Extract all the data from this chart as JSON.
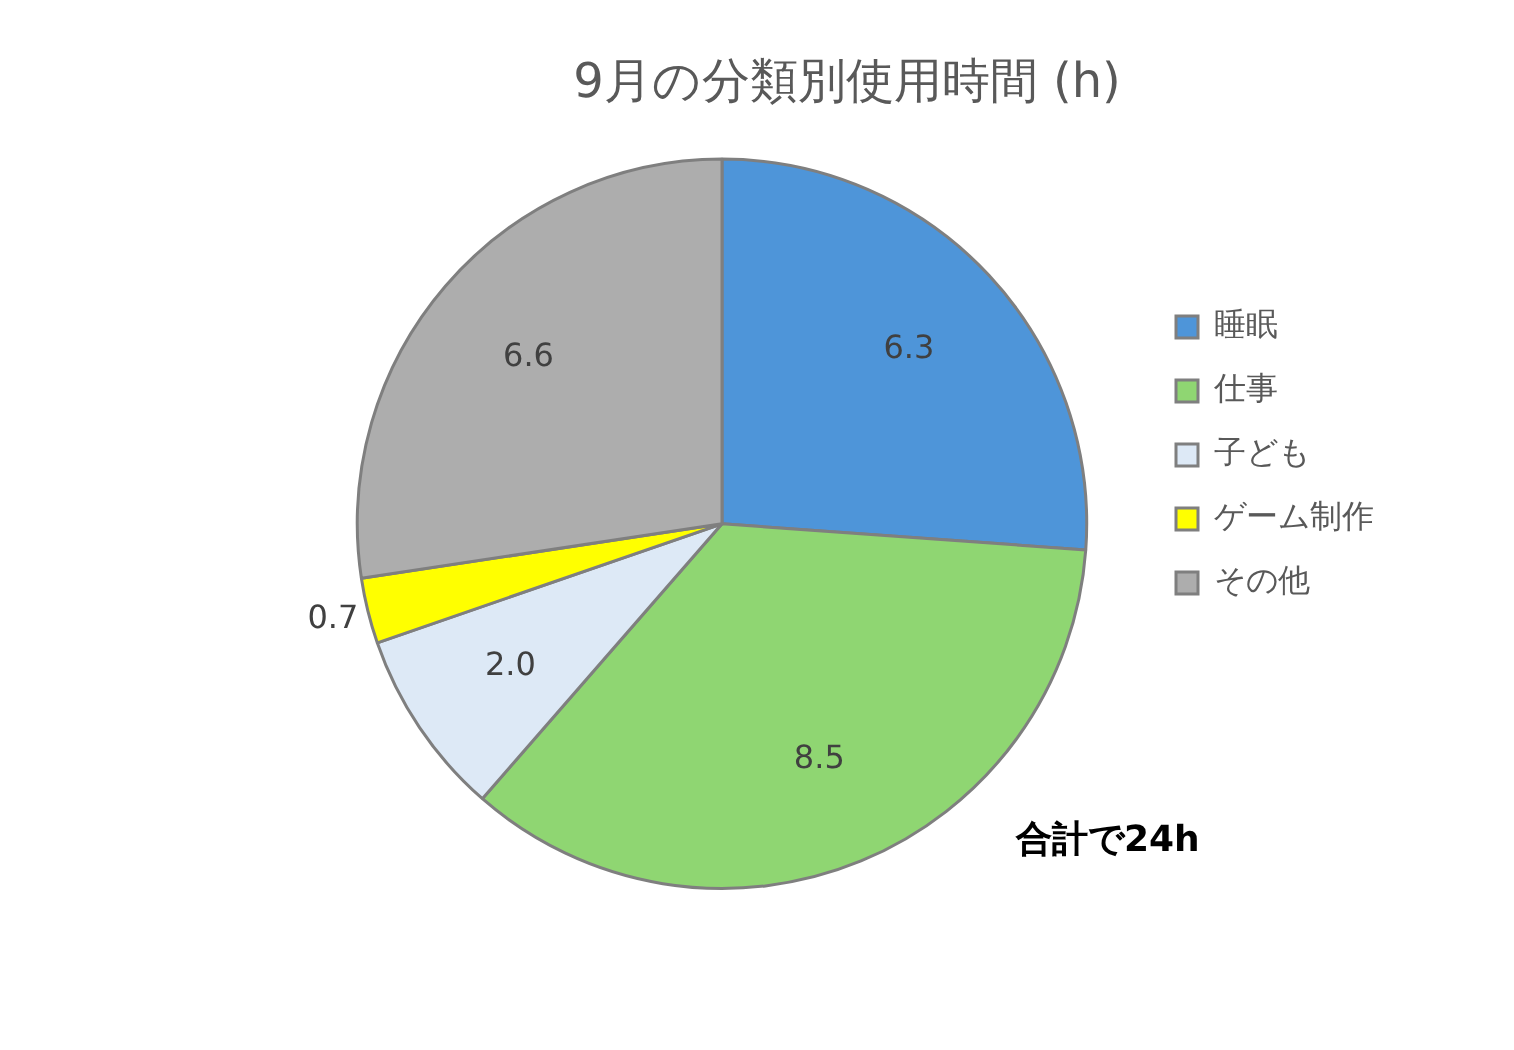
{
  "chart_data": {
    "type": "pie",
    "title": "9月の分類別使用時間 (h)",
    "categories": [
      "睡眠",
      "仕事",
      "子ども",
      "ゲーム制作",
      "その他"
    ],
    "values": [
      6.3,
      8.5,
      2.0,
      0.7,
      6.6
    ],
    "value_labels": [
      "6.3",
      "8.5",
      "2.0",
      "0.7",
      "6.6"
    ],
    "colors": [
      "#4e95d9",
      "#8fd672",
      "#dde9f6",
      "#ffff00",
      "#adadad"
    ],
    "legend": "right",
    "annotations": [
      "合計で24h"
    ]
  }
}
